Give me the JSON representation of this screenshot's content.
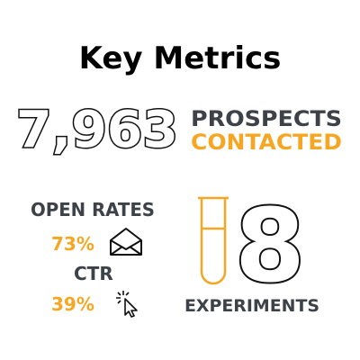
{
  "title": "Key Metrics",
  "prospects": {
    "number": "7,963",
    "label_line1": "PROSPECTS",
    "label_line2": "CONTACTED"
  },
  "open_rates": {
    "label": "OPEN RATES",
    "value": "73%"
  },
  "ctr": {
    "label": "CTR",
    "value": "39%"
  },
  "experiments": {
    "number": "8",
    "label": "EXPERIMENTS"
  }
}
